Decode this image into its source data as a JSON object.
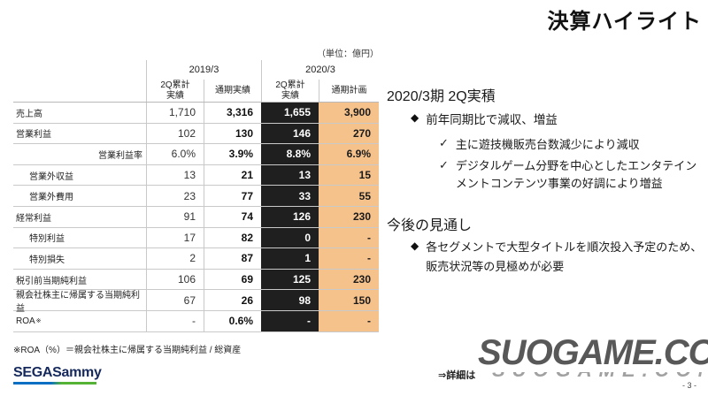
{
  "slide": {
    "title": "決算ハイライト",
    "unit_label": "（単位：億円）",
    "footnote": "※ROA（%）＝親会社株主に帰属する当期純利益 / 総資産",
    "logo_text": "SEGASammy",
    "detail_note": "⇒詳細は",
    "watermark": "SUOGAME.COM",
    "page_number": "- 3 -"
  },
  "markers": {
    "diamond": "◆",
    "check": "✓"
  },
  "table": {
    "col_groups": [
      "2019/3",
      "2020/3"
    ],
    "col_headers": [
      "2Q累計\n実績",
      "通期実績",
      "2Q累計\n実績",
      "通期計画"
    ],
    "rows": [
      {
        "label": "売上高",
        "style": "normal",
        "values": [
          "1,710",
          "3,316",
          "1,655",
          "3,900"
        ]
      },
      {
        "label": "営業利益",
        "style": "normal",
        "values": [
          "102",
          "130",
          "146",
          "270"
        ]
      },
      {
        "label": "営業利益率",
        "style": "rate",
        "values": [
          "6.0%",
          "3.9%",
          "8.8%",
          "6.9%"
        ]
      },
      {
        "label": "営業外収益",
        "style": "indent",
        "values": [
          "13",
          "21",
          "13",
          "15"
        ]
      },
      {
        "label": "営業外費用",
        "style": "indent",
        "values": [
          "23",
          "77",
          "33",
          "55"
        ]
      },
      {
        "label": "経常利益",
        "style": "normal",
        "values": [
          "91",
          "74",
          "126",
          "230"
        ]
      },
      {
        "label": "特別利益",
        "style": "indent",
        "values": [
          "17",
          "82",
          "0",
          "-"
        ]
      },
      {
        "label": "特別損失",
        "style": "indent",
        "values": [
          "2",
          "87",
          "1",
          "-"
        ]
      },
      {
        "label": "税引前当期純利益",
        "style": "normal",
        "values": [
          "106",
          "69",
          "125",
          "230"
        ]
      },
      {
        "label": "親会社株主に帰属する当期純利益",
        "style": "normal",
        "values": [
          "67",
          "26",
          "98",
          "150"
        ]
      },
      {
        "label": "ROA",
        "sup": "※",
        "style": "normal",
        "values": [
          "-",
          "0.6%",
          "-",
          "-"
        ]
      }
    ]
  },
  "panel": {
    "section1": {
      "heading": "2020/3期 2Q実積",
      "bullet": "前年同期比で減収、増益",
      "checks": [
        "主に遊技機販売台数減少により減収",
        "デジタルゲーム分野を中心としたエンタテインメントコンテンツ事業の好調により増益"
      ]
    },
    "section2": {
      "heading": "今後の見通し",
      "bullet": "各セグメントで大型タイトルを順次投入予定のため、販売状況等の見極めが必要"
    }
  },
  "colors": {
    "highlight_column_bg": "#1f1f1f",
    "highlight_column_text": "#ffffff",
    "plan_column_bg": "#f5c28c",
    "logo_bar_left": "#0a6fc2",
    "logo_bar_right": "#54b335",
    "watermark_gray": "#4a4a4a"
  }
}
